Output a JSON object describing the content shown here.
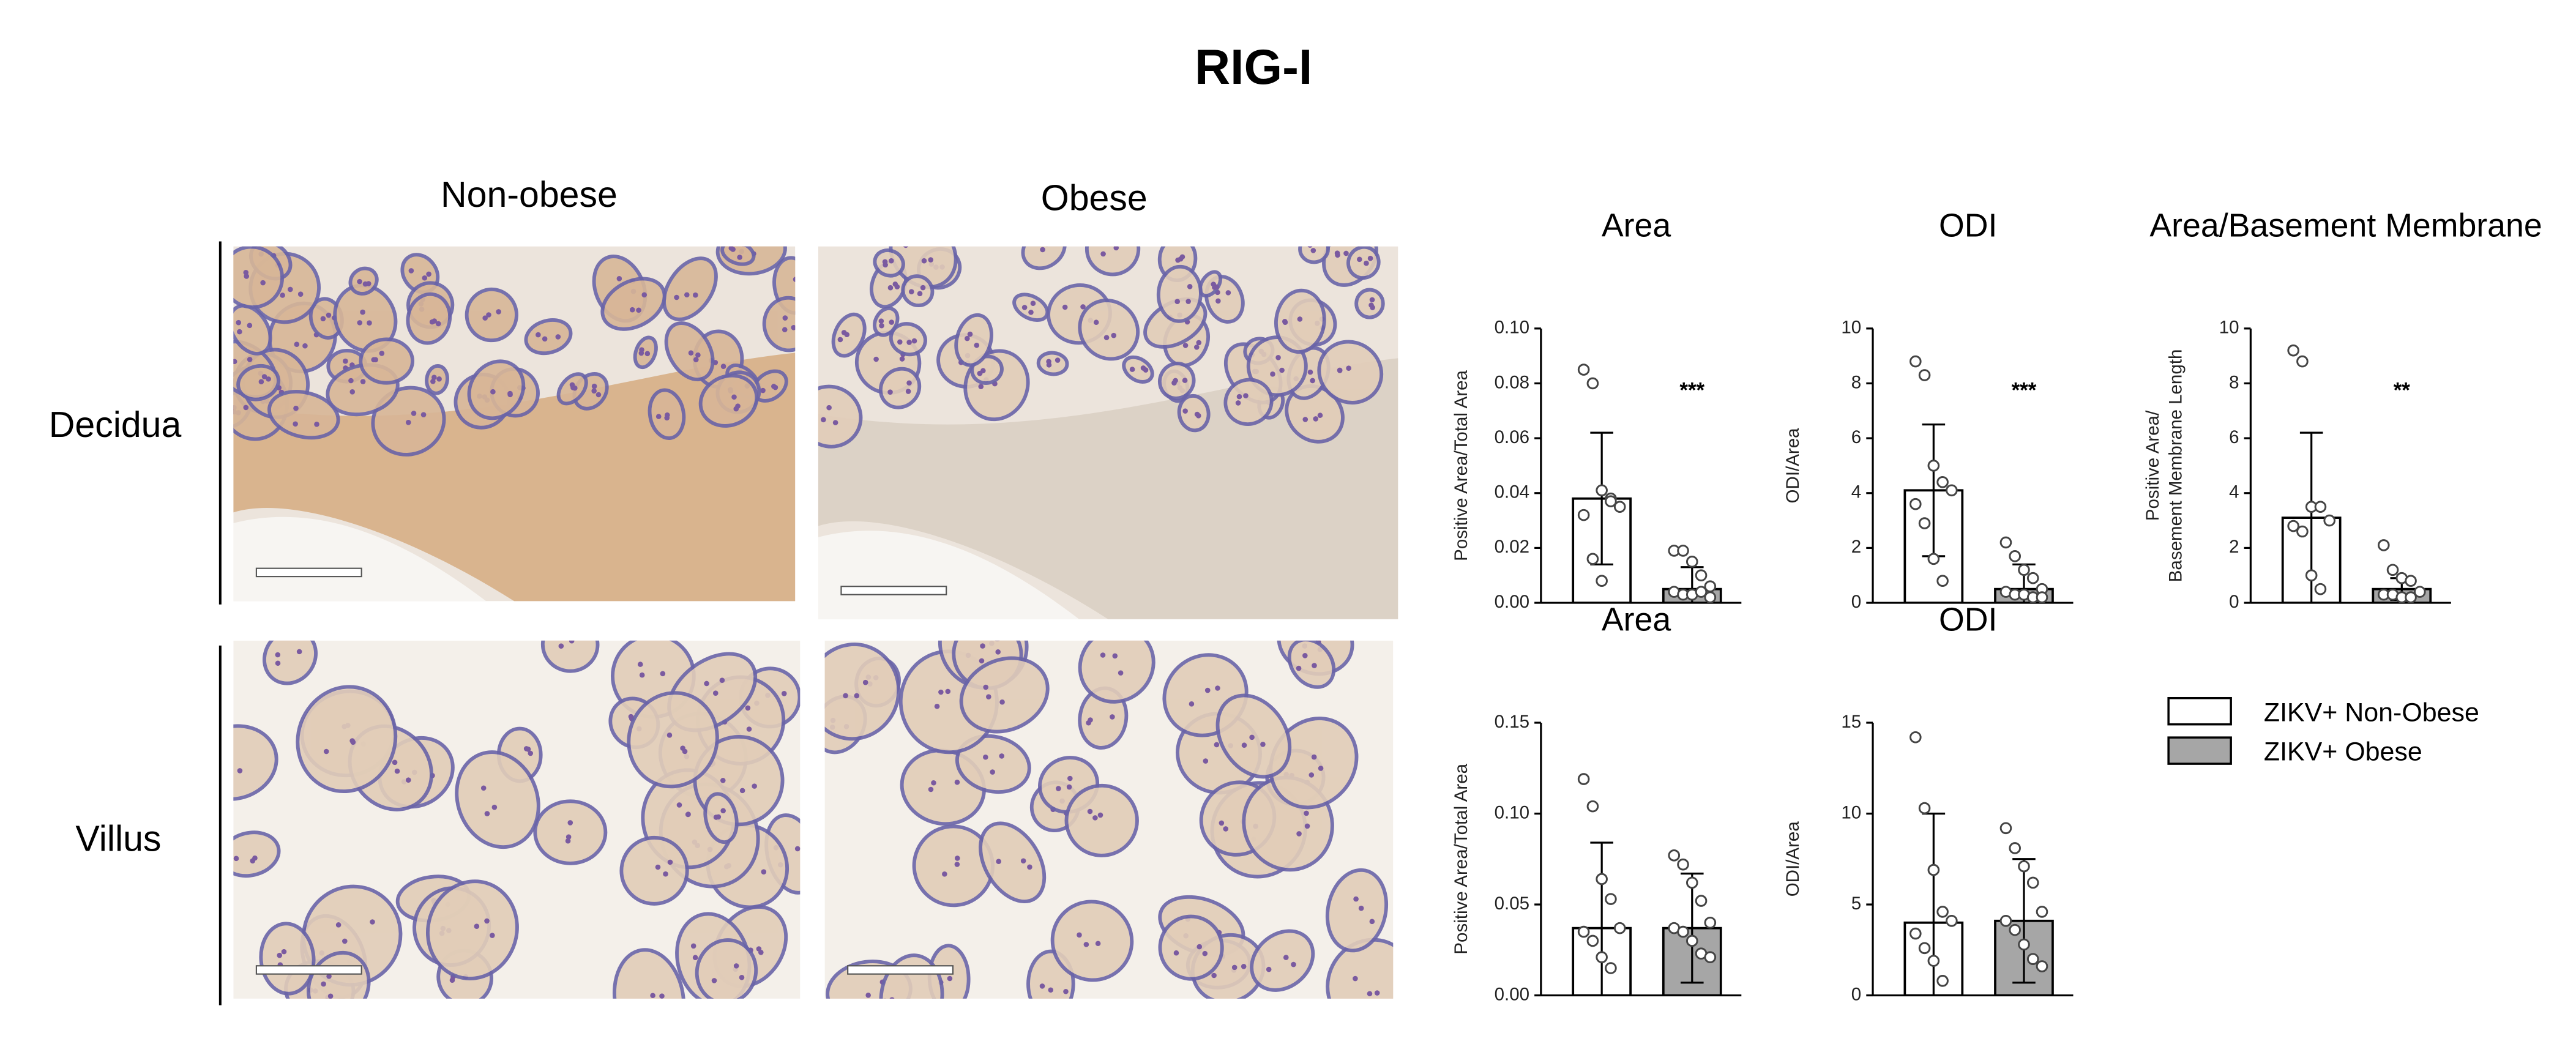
{
  "title": "RIG-I",
  "columns": [
    "Non-obese",
    "Obese"
  ],
  "rows": [
    "Decidua",
    "Villus"
  ],
  "legend": [
    {
      "name": "ZIKV+ Non-Obese",
      "color": "#ffffff"
    },
    {
      "name": "ZIKV+ Obese",
      "color": "#a6a6a6"
    }
  ],
  "chart_data": [
    {
      "type": "bar",
      "title": "Area",
      "ylabel": [
        "Positive Area/Total Area"
      ],
      "ylim": [
        0,
        0.1
      ],
      "yticks": [
        {
          "value": 0,
          "label": "0.00"
        },
        {
          "value": 0.02,
          "label": "0.02"
        },
        {
          "value": 0.04,
          "label": "0.04"
        },
        {
          "value": 0.06,
          "label": "0.06"
        },
        {
          "value": 0.08,
          "label": "0.08"
        },
        {
          "value": 0.1,
          "label": "0.10"
        }
      ],
      "groups": [
        {
          "value": 0.038,
          "error": 0.024,
          "points": [
            0.085,
            0.08,
            0.041,
            0.038,
            0.035,
            0.032,
            0.016,
            0.008,
            0.037
          ]
        },
        {
          "value": 0.005,
          "error": 0.008,
          "points": [
            0.019,
            0.019,
            0.015,
            0.01,
            0.006,
            0.004,
            0.003,
            0.003,
            0.004,
            0.002
          ]
        }
      ],
      "annotation": "***"
    },
    {
      "type": "bar",
      "title": "ODI",
      "ylabel": [
        "ODI/Area"
      ],
      "ylim": [
        0,
        10
      ],
      "yticks": [
        0,
        2,
        4,
        6,
        8,
        10
      ],
      "groups": [
        {
          "value": 4.1,
          "error": 2.4,
          "points": [
            8.8,
            8.3,
            5.0,
            4.4,
            4.1,
            3.6,
            2.9,
            1.6,
            0.8
          ]
        },
        {
          "value": 0.5,
          "error": 0.9,
          "points": [
            2.2,
            1.7,
            1.2,
            0.9,
            0.5,
            0.4,
            0.3,
            0.3,
            0.2,
            0.2
          ]
        }
      ],
      "annotation": "***"
    },
    {
      "type": "bar",
      "title": "Area/Basement Membrane",
      "ylabel": [
        "Positive Area/",
        "Basement Membrane Length"
      ],
      "ylim": [
        0,
        10
      ],
      "yticks": [
        0,
        2,
        4,
        6,
        8,
        10
      ],
      "groups": [
        {
          "value": 3.1,
          "error": 3.1,
          "points": [
            9.2,
            8.8,
            3.5,
            3.5,
            3.0,
            2.8,
            2.6,
            1.0,
            0.5
          ]
        },
        {
          "value": 0.5,
          "error": 0.4,
          "points": [
            2.1,
            1.2,
            0.9,
            0.8,
            0.4,
            0.3,
            0.3,
            0.2,
            0.2
          ]
        }
      ],
      "annotation": "**"
    },
    {
      "type": "bar",
      "title": "Area",
      "ylabel": [
        "Positive Area/Total Area"
      ],
      "ylim": [
        0,
        0.15
      ],
      "yticks": [
        {
          "value": 0,
          "label": "0.00"
        },
        {
          "value": 0.05,
          "label": "0.05"
        },
        {
          "value": 0.1,
          "label": "0.10"
        },
        {
          "value": 0.15,
          "label": "0.15"
        }
      ],
      "groups": [
        {
          "value": 0.037,
          "error": 0.047,
          "points": [
            0.119,
            0.104,
            0.064,
            0.053,
            0.037,
            0.035,
            0.03,
            0.021,
            0.015
          ]
        },
        {
          "value": 0.037,
          "error": 0.03,
          "points": [
            0.077,
            0.072,
            0.062,
            0.052,
            0.04,
            0.037,
            0.035,
            0.03,
            0.023,
            0.021
          ]
        }
      ]
    },
    {
      "type": "bar",
      "title": "ODI",
      "ylabel": [
        "ODI/Area"
      ],
      "ylim": [
        0,
        15
      ],
      "yticks": [
        0,
        5,
        10,
        15
      ],
      "groups": [
        {
          "value": 4.0,
          "error": 6.0,
          "points": [
            14.2,
            10.3,
            6.9,
            4.6,
            4.1,
            3.4,
            2.6,
            1.9,
            0.8
          ]
        },
        {
          "value": 4.1,
          "error": 3.4,
          "points": [
            9.2,
            8.1,
            7.1,
            6.2,
            4.6,
            4.1,
            3.6,
            2.8,
            2.0,
            1.6
          ]
        }
      ]
    }
  ]
}
